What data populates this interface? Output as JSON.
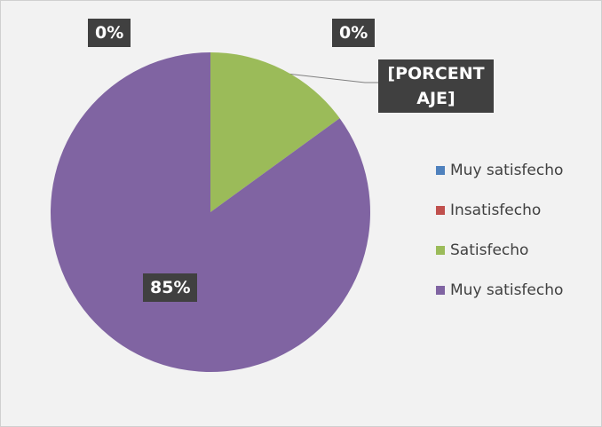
{
  "chart_data": {
    "type": "pie",
    "categories": [
      "Muy satisfecho",
      "Insatisfecho",
      "Satisfecho",
      "Muy satisfecho"
    ],
    "values": [
      0,
      0,
      15,
      85
    ],
    "value_labels": [
      "0%",
      "0%",
      "[PORCENTAJE]",
      "85%"
    ],
    "colors": [
      "#4f81bd",
      "#c0504d",
      "#9bbb59",
      "#8064a2"
    ],
    "legend": "right"
  }
}
